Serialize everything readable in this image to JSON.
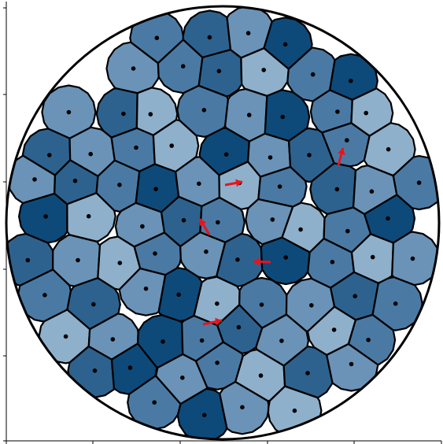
{
  "palette": {
    "light": "#b7ccdf",
    "light_mid": "#8fb0cb",
    "mid": "#6a93b7",
    "dark_mid": "#4a7aa4",
    "dark": "#2e628e",
    "darkest": "#0d4a7a",
    "outline": "#000000",
    "arrow": "#e8141c",
    "nucleus": "#000000"
  },
  "cells": [
    {
      "s": 3
    },
    {
      "s": 4
    },
    {
      "s": 2
    },
    {
      "s": 5
    },
    {
      "s": 2
    },
    {
      "s": 3
    },
    {
      "s": 4
    },
    {
      "s": 1
    },
    {
      "s": 3
    },
    {
      "s": 5
    },
    {
      "s": 2
    },
    {
      "s": 4
    },
    {
      "s": 1
    },
    {
      "s": 3
    },
    {
      "s": 2
    },
    {
      "s": 5
    },
    {
      "s": 3
    },
    {
      "s": 1
    },
    {
      "s": 4
    },
    {
      "s": 2
    },
    {
      "s": 3
    },
    {
      "s": 1
    },
    {
      "s": 5
    },
    {
      "s": 2
    },
    {
      "s": 4
    },
    {
      "s": 3
    },
    {
      "s": 1
    },
    {
      "s": 2
    },
    {
      "s": 4
    },
    {
      "s": 3
    },
    {
      "s": 5
    },
    {
      "s": 2
    },
    {
      "s": 1
    },
    {
      "s": 3
    },
    {
      "s": 4
    },
    {
      "s": 2
    },
    {
      "s": 3
    },
    {
      "s": 5
    },
    {
      "s": 1
    },
    {
      "s": 2
    },
    {
      "s": 4
    },
    {
      "s": 3
    },
    {
      "s": 2
    },
    {
      "s": 1
    },
    {
      "s": 3
    },
    {
      "s": 5
    },
    {
      "s": 4
    },
    {
      "s": 2
    },
    {
      "s": 1
    },
    {
      "s": 3
    },
    {
      "s": 2
    },
    {
      "s": 4
    },
    {
      "s": 5
    },
    {
      "s": 3
    },
    {
      "s": 1
    },
    {
      "s": 2
    },
    {
      "s": 3
    },
    {
      "s": 4
    },
    {
      "s": 2
    },
    {
      "s": 5
    },
    {
      "s": 1
    },
    {
      "s": 3
    },
    {
      "s": 2
    },
    {
      "s": 4
    },
    {
      "s": 3
    },
    {
      "s": 1
    },
    {
      "s": 2
    },
    {
      "s": 5
    },
    {
      "s": 3
    },
    {
      "s": 4
    },
    {
      "s": 2
    },
    {
      "s": 1
    },
    {
      "s": 3
    },
    {
      "s": 4
    },
    {
      "s": 5
    },
    {
      "s": 2
    },
    {
      "s": 3
    },
    {
      "s": 1
    },
    {
      "s": 4
    },
    {
      "s": 2
    },
    {
      "s": 3
    },
    {
      "s": 5
    },
    {
      "s": 2
    },
    {
      "s": 1
    },
    {
      "s": 4
    },
    {
      "s": 3
    },
    {
      "s": 2
    },
    {
      "s": 5
    },
    {
      "s": 1
    },
    {
      "s": 3
    },
    {
      "s": 4
    },
    {
      "s": 2
    },
    {
      "s": 3
    },
    {
      "s": 5
    },
    {
      "s": 1
    },
    {
      "s": 2
    },
    {
      "s": 4
    },
    {
      "s": 3
    },
    {
      "s": 2
    },
    {
      "s": 5
    },
    {
      "s": 1
    },
    {
      "s": 3
    },
    {
      "s": 4
    },
    {
      "s": 2
    },
    {
      "s": 5
    },
    {
      "s": 3
    },
    {
      "s": 1
    },
    {
      "s": 2
    },
    {
      "s": 4
    },
    {
      "s": 3
    },
    {
      "s": 2
    },
    {
      "s": 5
    },
    {
      "s": 4
    },
    {
      "s": 1
    },
    {
      "s": 3
    },
    {
      "s": 2
    },
    {
      "s": 4
    },
    {
      "s": 5
    },
    {
      "s": 3
    },
    {
      "s": 1
    },
    {
      "s": 2
    },
    {
      "s": 4
    },
    {
      "s": 3
    },
    {
      "s": 5
    },
    {
      "s": 2
    },
    {
      "s": 1
    },
    {
      "s": 3
    },
    {
      "s": 4
    },
    {
      "s": 2
    },
    {
      "s": 5
    },
    {
      "s": 3
    },
    {
      "s": 1
    },
    {
      "s": 4
    },
    {
      "s": 2
    },
    {
      "s": 5
    },
    {
      "s": 3
    },
    {
      "s": 2
    },
    {
      "s": 4
    },
    {
      "s": 1
    },
    {
      "s": 3
    },
    {
      "s": 5
    },
    {
      "s": 2
    },
    {
      "s": 4
    },
    {
      "s": 3
    },
    {
      "s": 1
    },
    {
      "s": 2
    },
    {
      "s": 5
    },
    {
      "s": 3
    },
    {
      "s": 4
    },
    {
      "s": 2
    }
  ],
  "arrows_count": 6
}
